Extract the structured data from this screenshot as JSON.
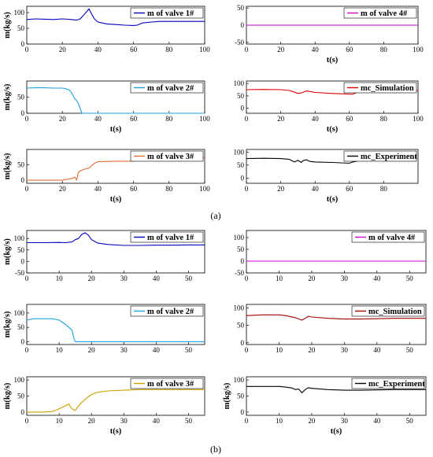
{
  "figure": {
    "captions": [
      "(a)",
      "(b)"
    ]
  },
  "chart_data": [
    {
      "type": "line",
      "group": "a",
      "series": [
        {
          "name": "m of valve 1#",
          "color": "#0000c0",
          "x": [
            0,
            5,
            10,
            15,
            20,
            25,
            28,
            30,
            32,
            34,
            35,
            36,
            38,
            40,
            45,
            50,
            55,
            60,
            62,
            65,
            70,
            75,
            80,
            90,
            100
          ],
          "y": [
            78,
            80,
            79,
            78,
            80,
            78,
            76,
            80,
            92,
            105,
            112,
            100,
            80,
            70,
            64,
            62,
            60,
            59,
            60,
            67,
            70,
            72,
            72,
            72,
            72
          ]
        }
      ],
      "xlim": [
        0,
        100
      ],
      "ylim": [
        0,
        120
      ],
      "yticks": [
        0,
        50,
        100
      ],
      "xticks": [
        0,
        20,
        40,
        60,
        80,
        100
      ],
      "xlabel": "",
      "ylabel": "m(kg/s)",
      "legend": "top-right"
    },
    {
      "type": "line",
      "group": "a",
      "series": [
        {
          "name": "m of valve 4#",
          "color": "#d000d0",
          "x": [
            0,
            100
          ],
          "y": [
            0,
            0
          ]
        }
      ],
      "xlim": [
        0,
        100
      ],
      "ylim": [
        -55,
        55
      ],
      "yticks": [
        -50,
        0,
        50
      ],
      "xticks": [
        0,
        20,
        40,
        60,
        80,
        100
      ],
      "xlabel": "t(s)",
      "ylabel": "",
      "legend": "top-right"
    },
    {
      "type": "line",
      "group": "a",
      "series": [
        {
          "name": "m of valve 2#",
          "color": "#1fa0e0",
          "x": [
            0,
            5,
            10,
            15,
            20,
            22,
            24,
            25,
            26,
            27,
            28,
            29,
            30,
            31,
            32,
            40,
            50,
            60,
            70,
            80,
            90,
            100
          ],
          "y": [
            78,
            79,
            79,
            78,
            78,
            76,
            72,
            65,
            55,
            45,
            40,
            30,
            15,
            0,
            0,
            0,
            0,
            0,
            0,
            0,
            0,
            0
          ]
        }
      ],
      "xlim": [
        0,
        100
      ],
      "ylim": [
        0,
        100
      ],
      "yticks": [
        0,
        50
      ],
      "xticks": [
        0,
        20,
        40,
        60,
        80,
        100
      ],
      "xlabel": "t(s)",
      "ylabel": "m(kg/s)",
      "legend": "top-right"
    },
    {
      "type": "line",
      "group": "a",
      "series": [
        {
          "name": "mc_Simulation",
          "color": "#e00000",
          "x": [
            0,
            10,
            20,
            25,
            28,
            30,
            32,
            35,
            40,
            50,
            60,
            62,
            65,
            70,
            80,
            90,
            100
          ],
          "y": [
            75,
            76,
            75,
            72,
            65,
            60,
            62,
            70,
            64,
            60,
            57,
            57,
            66,
            70,
            71,
            72,
            72
          ]
        }
      ],
      "xlim": [
        0,
        100
      ],
      "ylim": [
        -20,
        110
      ],
      "yticks": [
        0,
        50,
        100
      ],
      "xticks": [
        0,
        20,
        40,
        60,
        80,
        100
      ],
      "xlabel": "t(s)",
      "ylabel": "",
      "legend": "top-right"
    },
    {
      "type": "line",
      "group": "a",
      "series": [
        {
          "name": "m of valve 3#",
          "color": "#e07030",
          "x": [
            0,
            10,
            20,
            22,
            25,
            27,
            28,
            29,
            30,
            32,
            35,
            38,
            40,
            50,
            60,
            62,
            64,
            65,
            70,
            80,
            90,
            100
          ],
          "y": [
            0,
            0,
            0,
            2,
            5,
            10,
            0,
            25,
            30,
            35,
            40,
            55,
            60,
            62,
            62,
            66,
            72,
            74,
            74,
            74,
            74,
            74
          ]
        }
      ],
      "xlim": [
        0,
        100
      ],
      "ylim": [
        -10,
        100
      ],
      "yticks": [
        0,
        50
      ],
      "xticks": [
        0,
        20,
        40,
        60,
        80,
        100
      ],
      "xlabel": "t(s)",
      "ylabel": "m(kg/s)",
      "legend": "top-right"
    },
    {
      "type": "line",
      "group": "a",
      "series": [
        {
          "name": "mc_Experiment",
          "color": "#000000",
          "x": [
            0,
            10,
            20,
            25,
            27,
            28,
            30,
            32,
            33,
            35,
            37,
            40,
            50,
            60,
            62,
            65,
            70,
            75,
            80
          ],
          "y": [
            75,
            76,
            75,
            72,
            65,
            62,
            68,
            60,
            67,
            70,
            64,
            62,
            60,
            57,
            62,
            66,
            70,
            71,
            72
          ]
        }
      ],
      "xlim": [
        0,
        100
      ],
      "ylim": [
        -20,
        110
      ],
      "yticks": [
        0,
        50,
        100
      ],
      "xticks": [
        0,
        20,
        40,
        60,
        80
      ],
      "xlabel": "t(s)",
      "ylabel": "",
      "legend": "top-right"
    },
    {
      "type": "line",
      "group": "b",
      "series": [
        {
          "name": "m of valve 1#",
          "color": "#0000c0",
          "x": [
            0,
            5,
            10,
            12,
            14,
            15,
            16,
            17,
            18,
            19,
            20,
            22,
            25,
            30,
            35,
            40,
            45,
            50,
            55
          ],
          "y": [
            82,
            82,
            83,
            82,
            85,
            95,
            100,
            118,
            125,
            115,
            95,
            80,
            74,
            70,
            70,
            71,
            71,
            72,
            72
          ]
        }
      ],
      "xlim": [
        0,
        55
      ],
      "ylim": [
        -50,
        135
      ],
      "yticks": [
        -50,
        0,
        50,
        100
      ],
      "xticks": [
        0,
        10,
        20,
        30,
        40,
        50
      ],
      "xlabel": "",
      "ylabel": "m(kg/s)",
      "legend": "top-right"
    },
    {
      "type": "line",
      "group": "b",
      "series": [
        {
          "name": "m of valve 4#",
          "color": "#d000d0",
          "x": [
            0,
            55
          ],
          "y": [
            0,
            0
          ]
        }
      ],
      "xlim": [
        0,
        55
      ],
      "ylim": [
        -50,
        130
      ],
      "yticks": [
        -50,
        0,
        50,
        100
      ],
      "xticks": [
        0,
        10,
        20,
        30,
        40,
        50
      ],
      "xlabel": "",
      "ylabel": "",
      "legend": "top-right"
    },
    {
      "type": "line",
      "group": "b",
      "series": [
        {
          "name": "m of valve 2#",
          "color": "#1fa0e0",
          "x": [
            0,
            2,
            5,
            8,
            10,
            12,
            13,
            14,
            14.6,
            15,
            20,
            30,
            40,
            50,
            55
          ],
          "y": [
            75,
            80,
            80,
            80,
            75,
            60,
            50,
            40,
            10,
            0,
            0,
            0,
            0,
            0,
            0
          ]
        }
      ],
      "xlim": [
        0,
        55
      ],
      "ylim": [
        -10,
        130
      ],
      "yticks": [
        0,
        50,
        100
      ],
      "xticks": [
        0,
        10,
        20,
        30,
        40,
        50
      ],
      "xlabel": "",
      "ylabel": "m(kg/s)",
      "legend": "top-right"
    },
    {
      "type": "line",
      "group": "b",
      "series": [
        {
          "name": "mc_Simulation",
          "color": "#a00000",
          "x": [
            0,
            5,
            10,
            12,
            15,
            17,
            18,
            19,
            20,
            25,
            30,
            35,
            40,
            45,
            50,
            55
          ],
          "y": [
            78,
            80,
            80,
            78,
            72,
            65,
            70,
            76,
            74,
            70,
            68,
            68,
            69,
            70,
            70,
            70
          ]
        }
      ],
      "xlim": [
        0,
        55
      ],
      "ylim": [
        -5,
        110
      ],
      "yticks": [
        0,
        50,
        100
      ],
      "xticks": [
        0,
        10,
        20,
        30,
        40,
        50
      ],
      "xlabel": "",
      "ylabel": "",
      "legend": "top-right"
    },
    {
      "type": "line",
      "group": "b",
      "series": [
        {
          "name": "m of valve 3#",
          "color": "#c8a000",
          "x": [
            0,
            5,
            8,
            10,
            12,
            13,
            14,
            15,
            16,
            18,
            20,
            22,
            25,
            30,
            35,
            40,
            45,
            50,
            55
          ],
          "y": [
            0,
            0,
            2,
            10,
            20,
            25,
            10,
            5,
            20,
            40,
            55,
            62,
            66,
            68,
            70,
            70,
            70,
            70,
            70
          ]
        }
      ],
      "xlim": [
        0,
        55
      ],
      "ylim": [
        -10,
        110
      ],
      "yticks": [
        0,
        50,
        100
      ],
      "xticks": [
        0,
        10,
        20,
        30,
        40,
        50
      ],
      "xlabel": "t(s)",
      "ylabel": "m(kg/s)",
      "legend": "top-right"
    },
    {
      "type": "line",
      "group": "b",
      "series": [
        {
          "name": "mc_Experiment",
          "color": "#000000",
          "x": [
            0,
            5,
            10,
            12,
            14,
            15,
            16,
            17,
            18,
            19,
            20,
            25,
            30,
            35,
            40,
            45,
            50,
            55
          ],
          "y": [
            80,
            80,
            80,
            78,
            75,
            70,
            72,
            60,
            70,
            76,
            74,
            70,
            68,
            68,
            69,
            70,
            70,
            70
          ]
        }
      ],
      "xlim": [
        0,
        55
      ],
      "ylim": [
        -10,
        110
      ],
      "yticks": [
        0,
        50,
        100
      ],
      "xticks": [
        0,
        10,
        20,
        30,
        40,
        50
      ],
      "xlabel": "t(s)",
      "ylabel": "m(kg/s)",
      "legend": "top-right"
    }
  ]
}
